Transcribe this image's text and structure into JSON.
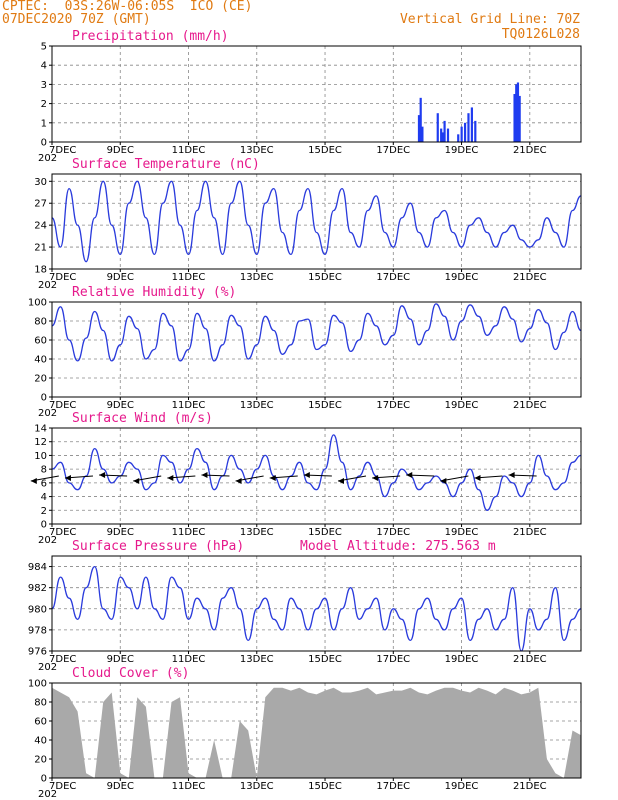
{
  "header": {
    "line1": "CPTEC:  03S:26W-06:05S  ICO (CE)",
    "line2": "07DEC2020 70Z (GMT)",
    "grid_note": "Vertical Grid Line: 70Z",
    "model_code": "TQ0126L028"
  },
  "x_tick_labels": [
    "7DEC",
    "9DEC",
    "11DEC",
    "13DEC",
    "15DEC",
    "17DEC",
    "19DEC",
    "21DEC"
  ],
  "year_stub": "202",
  "colors": {
    "line": "#2a3bdc",
    "bar": "#1f3cf0",
    "cloud": "#a9a9a9",
    "title": "#e6198c",
    "header": "#e07a12"
  },
  "chart_data": [
    {
      "id": "precip",
      "type": "bar",
      "title": "Precipitation (mm/h)",
      "ylim": [
        0,
        5
      ],
      "yticks": [
        0,
        1,
        2,
        3,
        4,
        5
      ],
      "x_unit": "days since 7DEC 00Z",
      "x": [
        10.75,
        10.8,
        10.85,
        11.3,
        11.4,
        11.45,
        11.5,
        11.6,
        11.9,
        12.0,
        12.1,
        12.2,
        12.3,
        12.4,
        13.55,
        13.6,
        13.65,
        13.7
      ],
      "values": [
        1.4,
        2.3,
        0.8,
        1.5,
        0.7,
        0.5,
        1.1,
        0.7,
        0.4,
        0.8,
        1.0,
        1.5,
        1.8,
        1.1,
        2.5,
        3.0,
        3.1,
        2.4
      ]
    },
    {
      "id": "temp",
      "type": "line",
      "title": "Surface Temperature (nC)",
      "ylim": [
        18,
        31
      ],
      "yticks": [
        18,
        21,
        24,
        27,
        30
      ],
      "x": [
        0,
        0.25,
        0.5,
        0.75,
        1,
        1.25,
        1.5,
        1.75,
        2,
        2.25,
        2.5,
        2.75,
        3,
        3.25,
        3.5,
        3.75,
        4,
        4.25,
        4.5,
        4.75,
        5,
        5.25,
        5.5,
        5.75,
        6,
        6.25,
        6.5,
        6.75,
        7,
        7.25,
        7.5,
        7.75,
        8,
        8.25,
        8.5,
        8.75,
        9,
        9.25,
        9.5,
        9.75,
        10,
        10.25,
        10.5,
        10.75,
        11,
        11.25,
        11.5,
        11.75,
        12,
        12.25,
        12.5,
        12.75,
        13,
        13.25,
        13.5,
        13.75,
        14,
        14.25,
        14.5,
        14.75,
        15,
        15.25,
        15.5
      ],
      "values": [
        25,
        21,
        29,
        24,
        19,
        25,
        30,
        24,
        20,
        27,
        30,
        25,
        20,
        27,
        30,
        24,
        20,
        26,
        30,
        25,
        20,
        27,
        30,
        24,
        20,
        27,
        29,
        23,
        20,
        26,
        29,
        23,
        20,
        26,
        29,
        23,
        21,
        26,
        28,
        23,
        21,
        25,
        27,
        23,
        21,
        25,
        26,
        23,
        21,
        24,
        25,
        23,
        21,
        23,
        24,
        22,
        21,
        22,
        25,
        23,
        21,
        26,
        28
      ]
    },
    {
      "id": "rh",
      "type": "line",
      "title": "Relative Humidity (%)",
      "ylim": [
        0,
        100
      ],
      "yticks": [
        0,
        20,
        40,
        60,
        80,
        100
      ],
      "x": [
        0,
        0.25,
        0.5,
        0.75,
        1,
        1.25,
        1.5,
        1.75,
        2,
        2.25,
        2.5,
        2.75,
        3,
        3.25,
        3.5,
        3.75,
        4,
        4.25,
        4.5,
        4.75,
        5,
        5.25,
        5.5,
        5.75,
        6,
        6.25,
        6.5,
        6.75,
        7,
        7.25,
        7.5,
        7.75,
        8,
        8.25,
        8.5,
        8.75,
        9,
        9.25,
        9.5,
        9.75,
        10,
        10.25,
        10.5,
        10.75,
        11,
        11.25,
        11.5,
        11.75,
        12,
        12.25,
        12.5,
        12.75,
        13,
        13.25,
        13.5,
        13.75,
        14,
        14.25,
        14.5,
        14.75,
        15,
        15.25,
        15.5
      ],
      "values": [
        75,
        95,
        60,
        38,
        62,
        90,
        70,
        38,
        55,
        85,
        72,
        40,
        50,
        88,
        75,
        38,
        50,
        88,
        72,
        38,
        55,
        86,
        75,
        40,
        55,
        85,
        70,
        45,
        55,
        80,
        82,
        50,
        55,
        86,
        78,
        48,
        60,
        88,
        75,
        55,
        65,
        96,
        82,
        55,
        70,
        98,
        85,
        60,
        80,
        97,
        85,
        65,
        75,
        95,
        82,
        58,
        72,
        92,
        78,
        50,
        68,
        90,
        70
      ]
    },
    {
      "id": "wind",
      "type": "line",
      "title": "Surface Wind (m/s)",
      "ylim": [
        0,
        14
      ],
      "yticks": [
        0,
        2,
        4,
        6,
        8,
        10,
        12,
        14
      ],
      "x": [
        0,
        0.25,
        0.5,
        0.75,
        1,
        1.25,
        1.5,
        1.75,
        2,
        2.25,
        2.5,
        2.75,
        3,
        3.25,
        3.5,
        3.75,
        4,
        4.25,
        4.5,
        4.75,
        5,
        5.25,
        5.5,
        5.75,
        6,
        6.25,
        6.5,
        6.75,
        7,
        7.25,
        7.5,
        7.75,
        8,
        8.25,
        8.5,
        8.75,
        9,
        9.25,
        9.5,
        9.75,
        10,
        10.25,
        10.5,
        10.75,
        11,
        11.25,
        11.5,
        11.75,
        12,
        12.25,
        12.5,
        12.75,
        13,
        13.25,
        13.5,
        13.75,
        14,
        14.25,
        14.5,
        14.75,
        15,
        15.25,
        15.5
      ],
      "values": [
        8,
        9,
        6,
        5,
        7,
        11,
        8,
        6,
        7,
        9,
        8,
        5,
        6,
        10,
        9,
        6,
        8,
        11,
        9,
        5,
        7,
        10,
        8,
        6,
        8,
        10,
        7,
        5,
        7,
        9,
        6,
        5,
        8,
        13,
        9,
        5,
        7,
        9,
        7,
        4,
        6,
        8,
        7,
        5,
        6,
        7,
        6,
        4,
        6,
        8,
        5,
        2,
        4,
        7,
        6,
        4,
        6,
        10,
        7,
        5,
        6,
        9,
        10
      ]
    },
    {
      "id": "pressure",
      "type": "line",
      "title": "Surface Pressure (hPa)",
      "annotation": "Model Altitude: 275.563 m",
      "ylim": [
        976,
        985
      ],
      "yticks": [
        976,
        978,
        980,
        982,
        984
      ],
      "x": [
        0,
        0.25,
        0.5,
        0.75,
        1,
        1.25,
        1.5,
        1.75,
        2,
        2.25,
        2.5,
        2.75,
        3,
        3.25,
        3.5,
        3.75,
        4,
        4.25,
        4.5,
        4.75,
        5,
        5.25,
        5.5,
        5.75,
        6,
        6.25,
        6.5,
        6.75,
        7,
        7.25,
        7.5,
        7.75,
        8,
        8.25,
        8.5,
        8.75,
        9,
        9.25,
        9.5,
        9.75,
        10,
        10.25,
        10.5,
        10.75,
        11,
        11.25,
        11.5,
        11.75,
        12,
        12.25,
        12.5,
        12.75,
        13,
        13.25,
        13.5,
        13.75,
        14,
        14.25,
        14.5,
        14.75,
        15,
        15.25,
        15.5
      ],
      "values": [
        980,
        983,
        981,
        979,
        982,
        984,
        980,
        979,
        983,
        982,
        980,
        983,
        980,
        979,
        983,
        982,
        979,
        981,
        980,
        978,
        981,
        982,
        980,
        977,
        980,
        981,
        979,
        978,
        981,
        980,
        978,
        980,
        981,
        978,
        980,
        982,
        979,
        980,
        981,
        978,
        980,
        979,
        977,
        980,
        981,
        979,
        978,
        980,
        981,
        977,
        979,
        980,
        978,
        979,
        982,
        976,
        980,
        978,
        979,
        982,
        977,
        979,
        980
      ]
    },
    {
      "id": "cloud",
      "type": "area",
      "title": "Cloud Cover (%)",
      "ylim": [
        0,
        100
      ],
      "yticks": [
        0,
        20,
        40,
        60,
        80,
        100
      ],
      "x": [
        0,
        0.25,
        0.5,
        0.75,
        1,
        1.25,
        1.5,
        1.75,
        2,
        2.25,
        2.5,
        2.75,
        3,
        3.25,
        3.5,
        3.75,
        4,
        4.25,
        4.5,
        4.75,
        5,
        5.25,
        5.5,
        5.75,
        6,
        6.25,
        6.5,
        6.75,
        7,
        7.25,
        7.5,
        7.75,
        8,
        8.25,
        8.5,
        8.75,
        9,
        9.25,
        9.5,
        9.75,
        10,
        10.25,
        10.5,
        10.75,
        11,
        11.25,
        11.5,
        11.75,
        12,
        12.25,
        12.5,
        12.75,
        13,
        13.25,
        13.5,
        13.75,
        14,
        14.25,
        14.5,
        14.75,
        15,
        15.25,
        15.5
      ],
      "values": [
        95,
        90,
        85,
        70,
        5,
        0,
        80,
        90,
        5,
        0,
        85,
        75,
        0,
        0,
        80,
        85,
        5,
        0,
        0,
        40,
        0,
        0,
        60,
        50,
        0,
        85,
        95,
        95,
        92,
        95,
        90,
        88,
        92,
        95,
        90,
        90,
        92,
        95,
        88,
        90,
        92,
        92,
        95,
        90,
        88,
        92,
        95,
        95,
        92,
        90,
        95,
        92,
        88,
        95,
        92,
        88,
        90,
        95,
        20,
        5,
        0,
        50,
        45
      ]
    }
  ]
}
